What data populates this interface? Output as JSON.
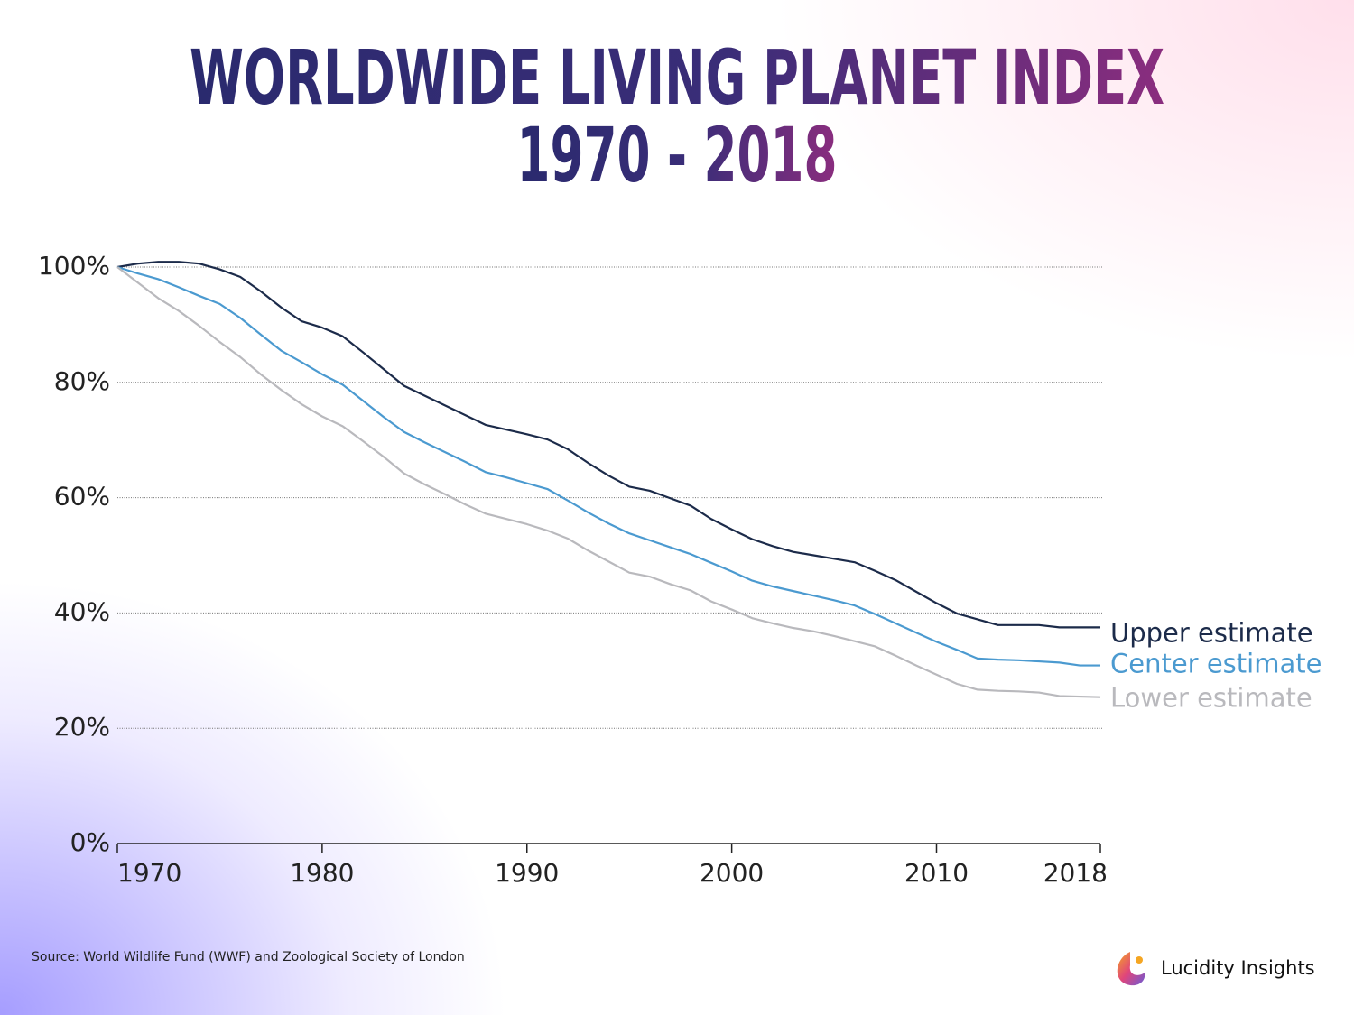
{
  "chart_data": {
    "type": "line",
    "title": "WORLDWIDE LIVING PLANET INDEX",
    "subtitle": "1970 - 2018",
    "source": "Source: World Wildlife Fund (WWF) and Zoological Society of London",
    "brand": "Lucidity Insights",
    "x": [
      1970,
      1971,
      1972,
      1973,
      1974,
      1975,
      1976,
      1977,
      1978,
      1979,
      1980,
      1981,
      1982,
      1983,
      1984,
      1985,
      1986,
      1987,
      1988,
      1989,
      1990,
      1991,
      1992,
      1993,
      1994,
      1995,
      1996,
      1997,
      1998,
      1999,
      2000,
      2001,
      2002,
      2003,
      2004,
      2005,
      2006,
      2007,
      2008,
      2009,
      2010,
      2011,
      2012,
      2013,
      2014,
      2015,
      2016,
      2017,
      2018
    ],
    "series": [
      {
        "name": "Upper estimate",
        "color": "#1c2b4a",
        "values": [
          100,
          100.6,
          100.9,
          100.9,
          100.6,
          99.6,
          98.3,
          95.8,
          93.0,
          90.6,
          89.5,
          88.0,
          85.2,
          82.3,
          79.4,
          77.7,
          76.0,
          74.3,
          72.6,
          71.8,
          71.0,
          70.1,
          68.4,
          66.0,
          63.8,
          61.9,
          61.2,
          59.9,
          58.6,
          56.3,
          54.5,
          52.8,
          51.6,
          50.6,
          50.0,
          49.4,
          48.8,
          47.3,
          45.7,
          43.7,
          41.7,
          39.9,
          38.9,
          37.9,
          37.9,
          37.9,
          37.5,
          37.5,
          37.5
        ]
      },
      {
        "name": "Center estimate",
        "color": "#4b9ad0",
        "values": [
          100,
          98.9,
          97.9,
          96.5,
          95.0,
          93.6,
          91.2,
          88.3,
          85.5,
          83.5,
          81.4,
          79.6,
          76.8,
          74.0,
          71.4,
          69.6,
          67.9,
          66.2,
          64.4,
          63.5,
          62.5,
          61.5,
          59.5,
          57.4,
          55.5,
          53.8,
          52.6,
          51.4,
          50.2,
          48.7,
          47.2,
          45.6,
          44.6,
          43.8,
          43.0,
          42.2,
          41.3,
          39.8,
          38.2,
          36.6,
          35.0,
          33.6,
          32.1,
          31.9,
          31.8,
          31.6,
          31.4,
          30.9,
          30.9
        ]
      },
      {
        "name": "Lower estimate",
        "color": "#b9b9bd",
        "values": [
          100,
          97.3,
          94.6,
          92.4,
          89.8,
          87.0,
          84.4,
          81.4,
          78.7,
          76.2,
          74.1,
          72.4,
          69.8,
          67.1,
          64.2,
          62.3,
          60.6,
          58.8,
          57.2,
          56.3,
          55.4,
          54.3,
          52.9,
          50.8,
          48.9,
          47.0,
          46.3,
          45.0,
          43.9,
          42.0,
          40.6,
          39.1,
          38.2,
          37.4,
          36.8,
          36.0,
          35.1,
          34.2,
          32.6,
          30.9,
          29.3,
          27.7,
          26.7,
          26.5,
          26.4,
          26.2,
          25.6,
          25.5,
          25.4
        ]
      }
    ],
    "xlim": [
      1970,
      2018
    ],
    "xticks": [
      1970,
      1980,
      1990,
      2000,
      2010,
      2018
    ],
    "ylim": [
      0,
      100
    ],
    "yticks": [
      {
        "value": 0,
        "label": "0%"
      },
      {
        "value": 20,
        "label": "20%"
      },
      {
        "value": 40,
        "label": "40%"
      },
      {
        "value": 60,
        "label": "60%"
      },
      {
        "value": 80,
        "label": "80%"
      },
      {
        "value": 100,
        "label": "100%"
      }
    ],
    "grid": true
  }
}
